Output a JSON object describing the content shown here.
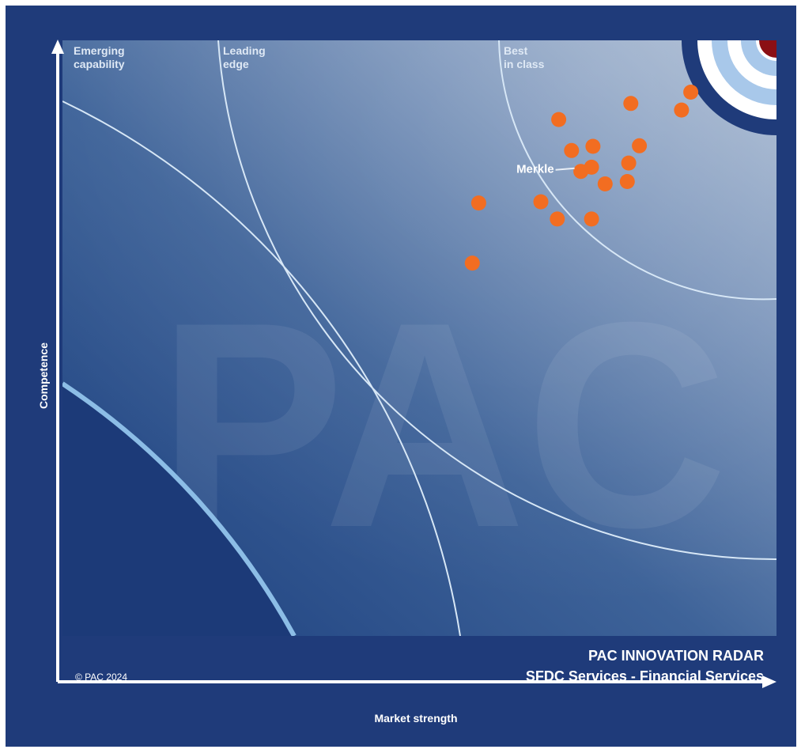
{
  "chart_data": {
    "type": "scatter",
    "title": "PAC INNOVATION RADAR",
    "subtitle": "SFDC Services - Financial Services",
    "xlabel": "Market strength",
    "ylabel": "Competence",
    "copyright": "© PAC 2024",
    "watermark": "PAC",
    "zones": [
      "Emerging\ncapability",
      "Leading\nedge",
      "Best\nin class"
    ],
    "colors": {
      "frame": "#1f3b7a",
      "panel_dark": "#1c3f7e",
      "panel_light": "#a6b7cf",
      "arc_outer": "#8cbde6",
      "arc_line": "#d7e7f6",
      "point": "#f26d21",
      "target_red": "#8b0f14",
      "text": "#ffffff"
    },
    "xlim": [
      0,
      100
    ],
    "ylim": [
      0,
      100
    ],
    "points": [
      {
        "x": 57.4,
        "y": 62.6,
        "label": ""
      },
      {
        "x": 58.3,
        "y": 72.7,
        "label": ""
      },
      {
        "x": 67.0,
        "y": 72.9,
        "label": ""
      },
      {
        "x": 69.3,
        "y": 70.0,
        "label": ""
      },
      {
        "x": 74.1,
        "y": 70.0,
        "label": ""
      },
      {
        "x": 69.5,
        "y": 86.7,
        "label": ""
      },
      {
        "x": 71.3,
        "y": 81.5,
        "label": ""
      },
      {
        "x": 74.3,
        "y": 82.2,
        "label": ""
      },
      {
        "x": 74.1,
        "y": 78.7,
        "label": ""
      },
      {
        "x": 72.6,
        "y": 78.0,
        "label": "Merkle"
      },
      {
        "x": 76.0,
        "y": 75.9,
        "label": ""
      },
      {
        "x": 79.1,
        "y": 76.3,
        "label": ""
      },
      {
        "x": 79.3,
        "y": 79.4,
        "label": ""
      },
      {
        "x": 80.8,
        "y": 82.3,
        "label": ""
      },
      {
        "x": 79.6,
        "y": 89.4,
        "label": ""
      },
      {
        "x": 86.7,
        "y": 88.3,
        "label": ""
      },
      {
        "x": 88.0,
        "y": 91.3,
        "label": ""
      }
    ]
  }
}
